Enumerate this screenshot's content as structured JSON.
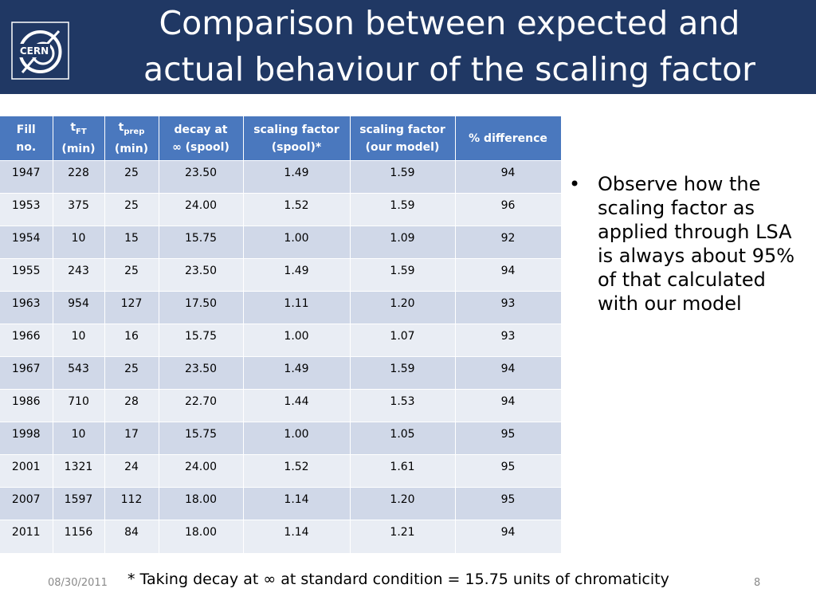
{
  "header": {
    "title_line1": "Comparison between expected and",
    "title_line2": "actual behaviour of the scaling factor",
    "logo_text": "CERN"
  },
  "table": {
    "headers": {
      "fill_line1": "Fill",
      "fill_line2": "no.",
      "tft_base": "t",
      "tft_sub": "FT",
      "tft_unit": "(min)",
      "tprep_base": "t",
      "tprep_sub": "prep",
      "tprep_unit": "(min)",
      "decay_line1": "decay at",
      "decay_line2": "∞ (spool)",
      "sf_spool_line1": "scaling factor",
      "sf_spool_line2": "(spool)*",
      "sf_model_line1": "scaling factor",
      "sf_model_line2": "(our model)",
      "diff": "% difference"
    },
    "rows": [
      [
        "1947",
        "228",
        "25",
        "23.50",
        "1.49",
        "1.59",
        "94"
      ],
      [
        "1953",
        "375",
        "25",
        "24.00",
        "1.52",
        "1.59",
        "96"
      ],
      [
        "1954",
        "10",
        "15",
        "15.75",
        "1.00",
        "1.09",
        "92"
      ],
      [
        "1955",
        "243",
        "25",
        "23.50",
        "1.49",
        "1.59",
        "94"
      ],
      [
        "1963",
        "954",
        "127",
        "17.50",
        "1.11",
        "1.20",
        "93"
      ],
      [
        "1966",
        "10",
        "16",
        "15.75",
        "1.00",
        "1.07",
        "93"
      ],
      [
        "1967",
        "543",
        "25",
        "23.50",
        "1.49",
        "1.59",
        "94"
      ],
      [
        "1986",
        "710",
        "28",
        "22.70",
        "1.44",
        "1.53",
        "94"
      ],
      [
        "1998",
        "10",
        "17",
        "15.75",
        "1.00",
        "1.05",
        "95"
      ],
      [
        "2001",
        "1321",
        "24",
        "24.00",
        "1.52",
        "1.61",
        "95"
      ],
      [
        "2007",
        "1597",
        "112",
        "18.00",
        "1.14",
        "1.20",
        "95"
      ],
      [
        "2011",
        "1156",
        "84",
        "18.00",
        "1.14",
        "1.21",
        "94"
      ]
    ]
  },
  "bullets": [
    "Observe how the scaling factor as applied through LSA is always about 95% of that calculated with our model"
  ],
  "footnote": "* Taking decay at ∞ at standard condition = 15.75 units of chromaticity",
  "footer": {
    "date": "08/30/2011",
    "page_number": "8"
  },
  "colors": {
    "header_bg": "#203864",
    "table_header_bg": "#4a78be",
    "row_odd": "#d0d8e8",
    "row_even": "#e9edf4"
  }
}
